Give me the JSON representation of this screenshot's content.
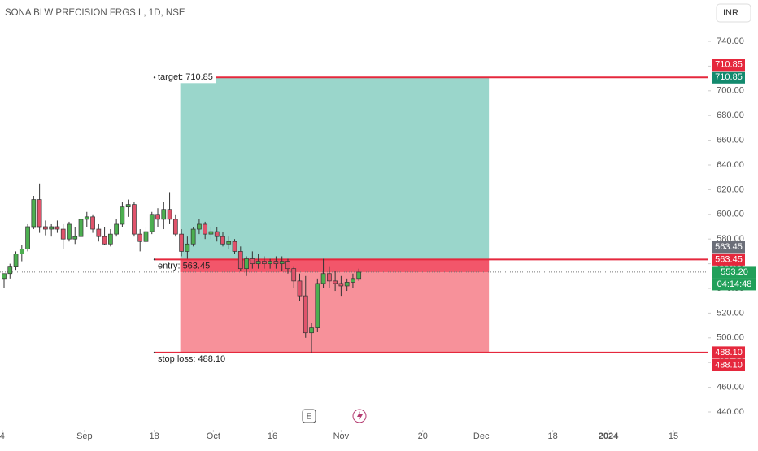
{
  "header": {
    "title": "SONA BLW PRECISION FRGS L, 1D, NSE",
    "currency": "INR"
  },
  "chart_data": {
    "type": "candlestick",
    "ylim": [
      440,
      740
    ],
    "yticks": [
      {
        "value": 440,
        "label": "440.00"
      },
      {
        "value": 460,
        "label": "460.00"
      },
      {
        "value": 480,
        "label": "480.00"
      },
      {
        "value": 500,
        "label": "500.00"
      },
      {
        "value": 520,
        "label": "520.00"
      },
      {
        "value": 540,
        "label": "540.00"
      },
      {
        "value": 560,
        "label": "560.00"
      },
      {
        "value": 580,
        "label": "580.00"
      },
      {
        "value": 600,
        "label": "600.00"
      },
      {
        "value": 620,
        "label": "620.00"
      },
      {
        "value": 640,
        "label": "640.00"
      },
      {
        "value": 660,
        "label": "660.00"
      },
      {
        "value": 680,
        "label": "680.00"
      },
      {
        "value": 700,
        "label": "700.00"
      },
      {
        "value": 720,
        "label": "720.00"
      },
      {
        "value": 740,
        "label": "740.00"
      }
    ],
    "xlim": [
      -0.7,
      119
    ],
    "xticks": [
      {
        "value": -0.3,
        "label": "4"
      },
      {
        "value": 13.6,
        "label": "Sep"
      },
      {
        "value": 25.4,
        "label": "18"
      },
      {
        "value": 35.4,
        "label": "Oct"
      },
      {
        "value": 45.4,
        "label": "16"
      },
      {
        "value": 57,
        "label": "Nov"
      },
      {
        "value": 70.8,
        "label": "20"
      },
      {
        "value": 80.7,
        "label": "Dec"
      },
      {
        "value": 92.8,
        "label": "18"
      },
      {
        "value": 102.2,
        "label": "2024"
      },
      {
        "value": 113.2,
        "label": "15"
      }
    ],
    "colors": {
      "up": "#4caf50",
      "down": "#e0536b",
      "wick": "#333333"
    },
    "ohlc": [
      [
        548,
        552,
        540,
        552
      ],
      [
        552,
        560,
        548,
        558
      ],
      [
        558,
        570,
        555,
        568
      ],
      [
        568,
        575,
        562,
        572
      ],
      [
        572,
        592,
        570,
        590
      ],
      [
        590,
        615,
        588,
        612
      ],
      [
        612,
        625,
        585,
        590
      ],
      [
        590,
        595,
        583,
        588
      ],
      [
        588,
        592,
        582,
        590
      ],
      [
        590,
        595,
        585,
        588
      ],
      [
        588,
        592,
        572,
        580
      ],
      [
        580,
        594,
        578,
        592
      ],
      [
        580,
        590,
        576,
        582
      ],
      [
        582,
        600,
        580,
        596
      ],
      [
        596,
        602,
        590,
        598
      ],
      [
        598,
        600,
        585,
        588
      ],
      [
        588,
        592,
        578,
        582
      ],
      [
        582,
        590,
        575,
        576
      ],
      [
        576,
        588,
        574,
        584
      ],
      [
        584,
        596,
        582,
        592
      ],
      [
        592,
        610,
        590,
        606
      ],
      [
        606,
        612,
        598,
        608
      ],
      [
        608,
        610,
        582,
        584
      ],
      [
        584,
        588,
        570,
        578
      ],
      [
        578,
        590,
        576,
        586
      ],
      [
        586,
        602,
        584,
        600
      ],
      [
        600,
        605,
        590,
        596
      ],
      [
        596,
        610,
        588,
        604
      ],
      [
        604,
        618,
        592,
        596
      ],
      [
        596,
        600,
        582,
        584
      ],
      [
        584,
        588,
        566,
        570
      ],
      [
        570,
        582,
        564,
        576
      ],
      [
        576,
        590,
        574,
        588
      ],
      [
        588,
        596,
        584,
        592
      ],
      [
        592,
        594,
        580,
        584
      ],
      [
        584,
        590,
        580,
        586
      ],
      [
        586,
        590,
        578,
        582
      ],
      [
        582,
        586,
        574,
        576
      ],
      [
        576,
        582,
        572,
        578
      ],
      [
        578,
        580,
        568,
        570
      ],
      [
        570,
        574,
        554,
        556
      ],
      [
        556,
        566,
        550,
        564
      ],
      [
        564,
        570,
        556,
        560
      ],
      [
        560,
        568,
        556,
        562
      ],
      [
        562,
        566,
        556,
        560
      ],
      [
        560,
        564,
        556,
        562
      ],
      [
        562,
        566,
        556,
        560
      ],
      [
        560,
        566,
        554,
        562
      ],
      [
        562,
        564,
        552,
        556
      ],
      [
        556,
        558,
        540,
        546
      ],
      [
        546,
        552,
        530,
        534
      ],
      [
        534,
        550,
        500,
        504
      ],
      [
        504,
        512,
        488,
        508
      ],
      [
        508,
        548,
        505,
        544
      ],
      [
        544,
        564,
        540,
        552
      ],
      [
        552,
        558,
        540,
        546
      ],
      [
        546,
        554,
        538,
        544
      ],
      [
        544,
        550,
        534,
        542
      ],
      [
        542,
        548,
        538,
        545
      ],
      [
        545,
        552,
        540,
        548
      ],
      [
        548,
        556,
        546,
        553.2
      ]
    ],
    "position": {
      "x_range": [
        29.8,
        82
      ],
      "target": 710.85,
      "entry": 563.45,
      "stop": 488.1,
      "current": 553.2,
      "target_label": "target: 710.85",
      "entry_label": "entry: 563.45",
      "stop_label": "stop loss: 488.10",
      "profit_color": "#9ad6cb",
      "loss_color": "#f7919a",
      "line_color": "#e5283d"
    },
    "price_tags": [
      {
        "value": 710.85,
        "label": "710.85",
        "color": "#e5283d",
        "offset": -1
      },
      {
        "value": 710.85,
        "label": "710.85",
        "color": "#138a6e",
        "offset": 0
      },
      {
        "value": 563.45,
        "label": "563.45",
        "color": "#6b6e78",
        "offset": -1
      },
      {
        "value": 563.45,
        "label": "563.45",
        "color": "#e5283d",
        "offset": 0
      },
      {
        "value": 553.2,
        "label": "553.20",
        "color": "#21a05a",
        "offset": 0
      },
      {
        "value": 488.1,
        "label": "488.10",
        "color": "#e5283d",
        "offset": 0
      },
      {
        "value": 488.1,
        "label": "488.10",
        "color": "#e5283d",
        "offset": 1
      }
    ],
    "countdown": "04:14:48"
  }
}
